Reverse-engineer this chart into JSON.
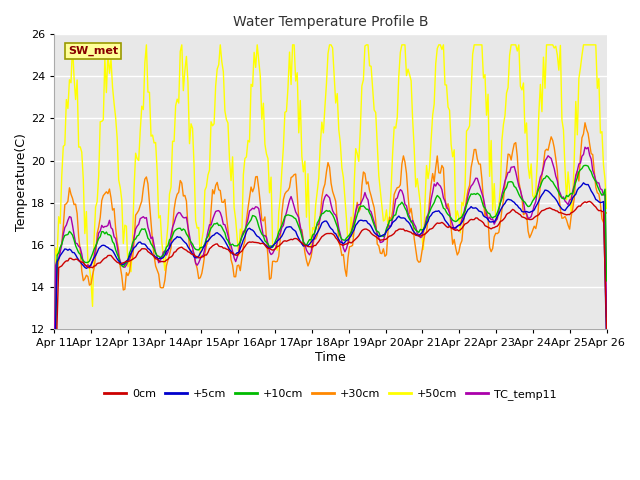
{
  "title": "Water Temperature Profile B",
  "xlabel": "Time",
  "ylabel": "Temperature(C)",
  "ylim": [
    12,
    26
  ],
  "xlim": [
    0,
    360
  ],
  "x_tick_labels": [
    "Apr 11",
    "Apr 12",
    "Apr 13",
    "Apr 14",
    "Apr 15",
    "Apr 16",
    "Apr 17",
    "Apr 18",
    "Apr 19",
    "Apr 20",
    "Apr 21",
    "Apr 22",
    "Apr 23",
    "Apr 24",
    "Apr 25",
    "Apr 26"
  ],
  "x_tick_positions": [
    0,
    24,
    48,
    72,
    96,
    120,
    144,
    168,
    192,
    216,
    240,
    264,
    288,
    312,
    336,
    360
  ],
  "fig_bg_color": "#ffffff",
  "plot_bg_color": "#e8e8e8",
  "grid_color": "#ffffff",
  "series_colors": {
    "0cm": "#cc0000",
    "+5cm": "#0000cc",
    "+10cm": "#00bb00",
    "+30cm": "#ff8800",
    "+50cm": "#ffff00",
    "TC_temp11": "#aa00aa"
  },
  "legend_label": "SW_met",
  "legend_box_facecolor": "#ffff99",
  "legend_box_edgecolor": "#999900",
  "yticks": [
    12,
    14,
    16,
    18,
    20,
    22,
    24,
    26
  ]
}
